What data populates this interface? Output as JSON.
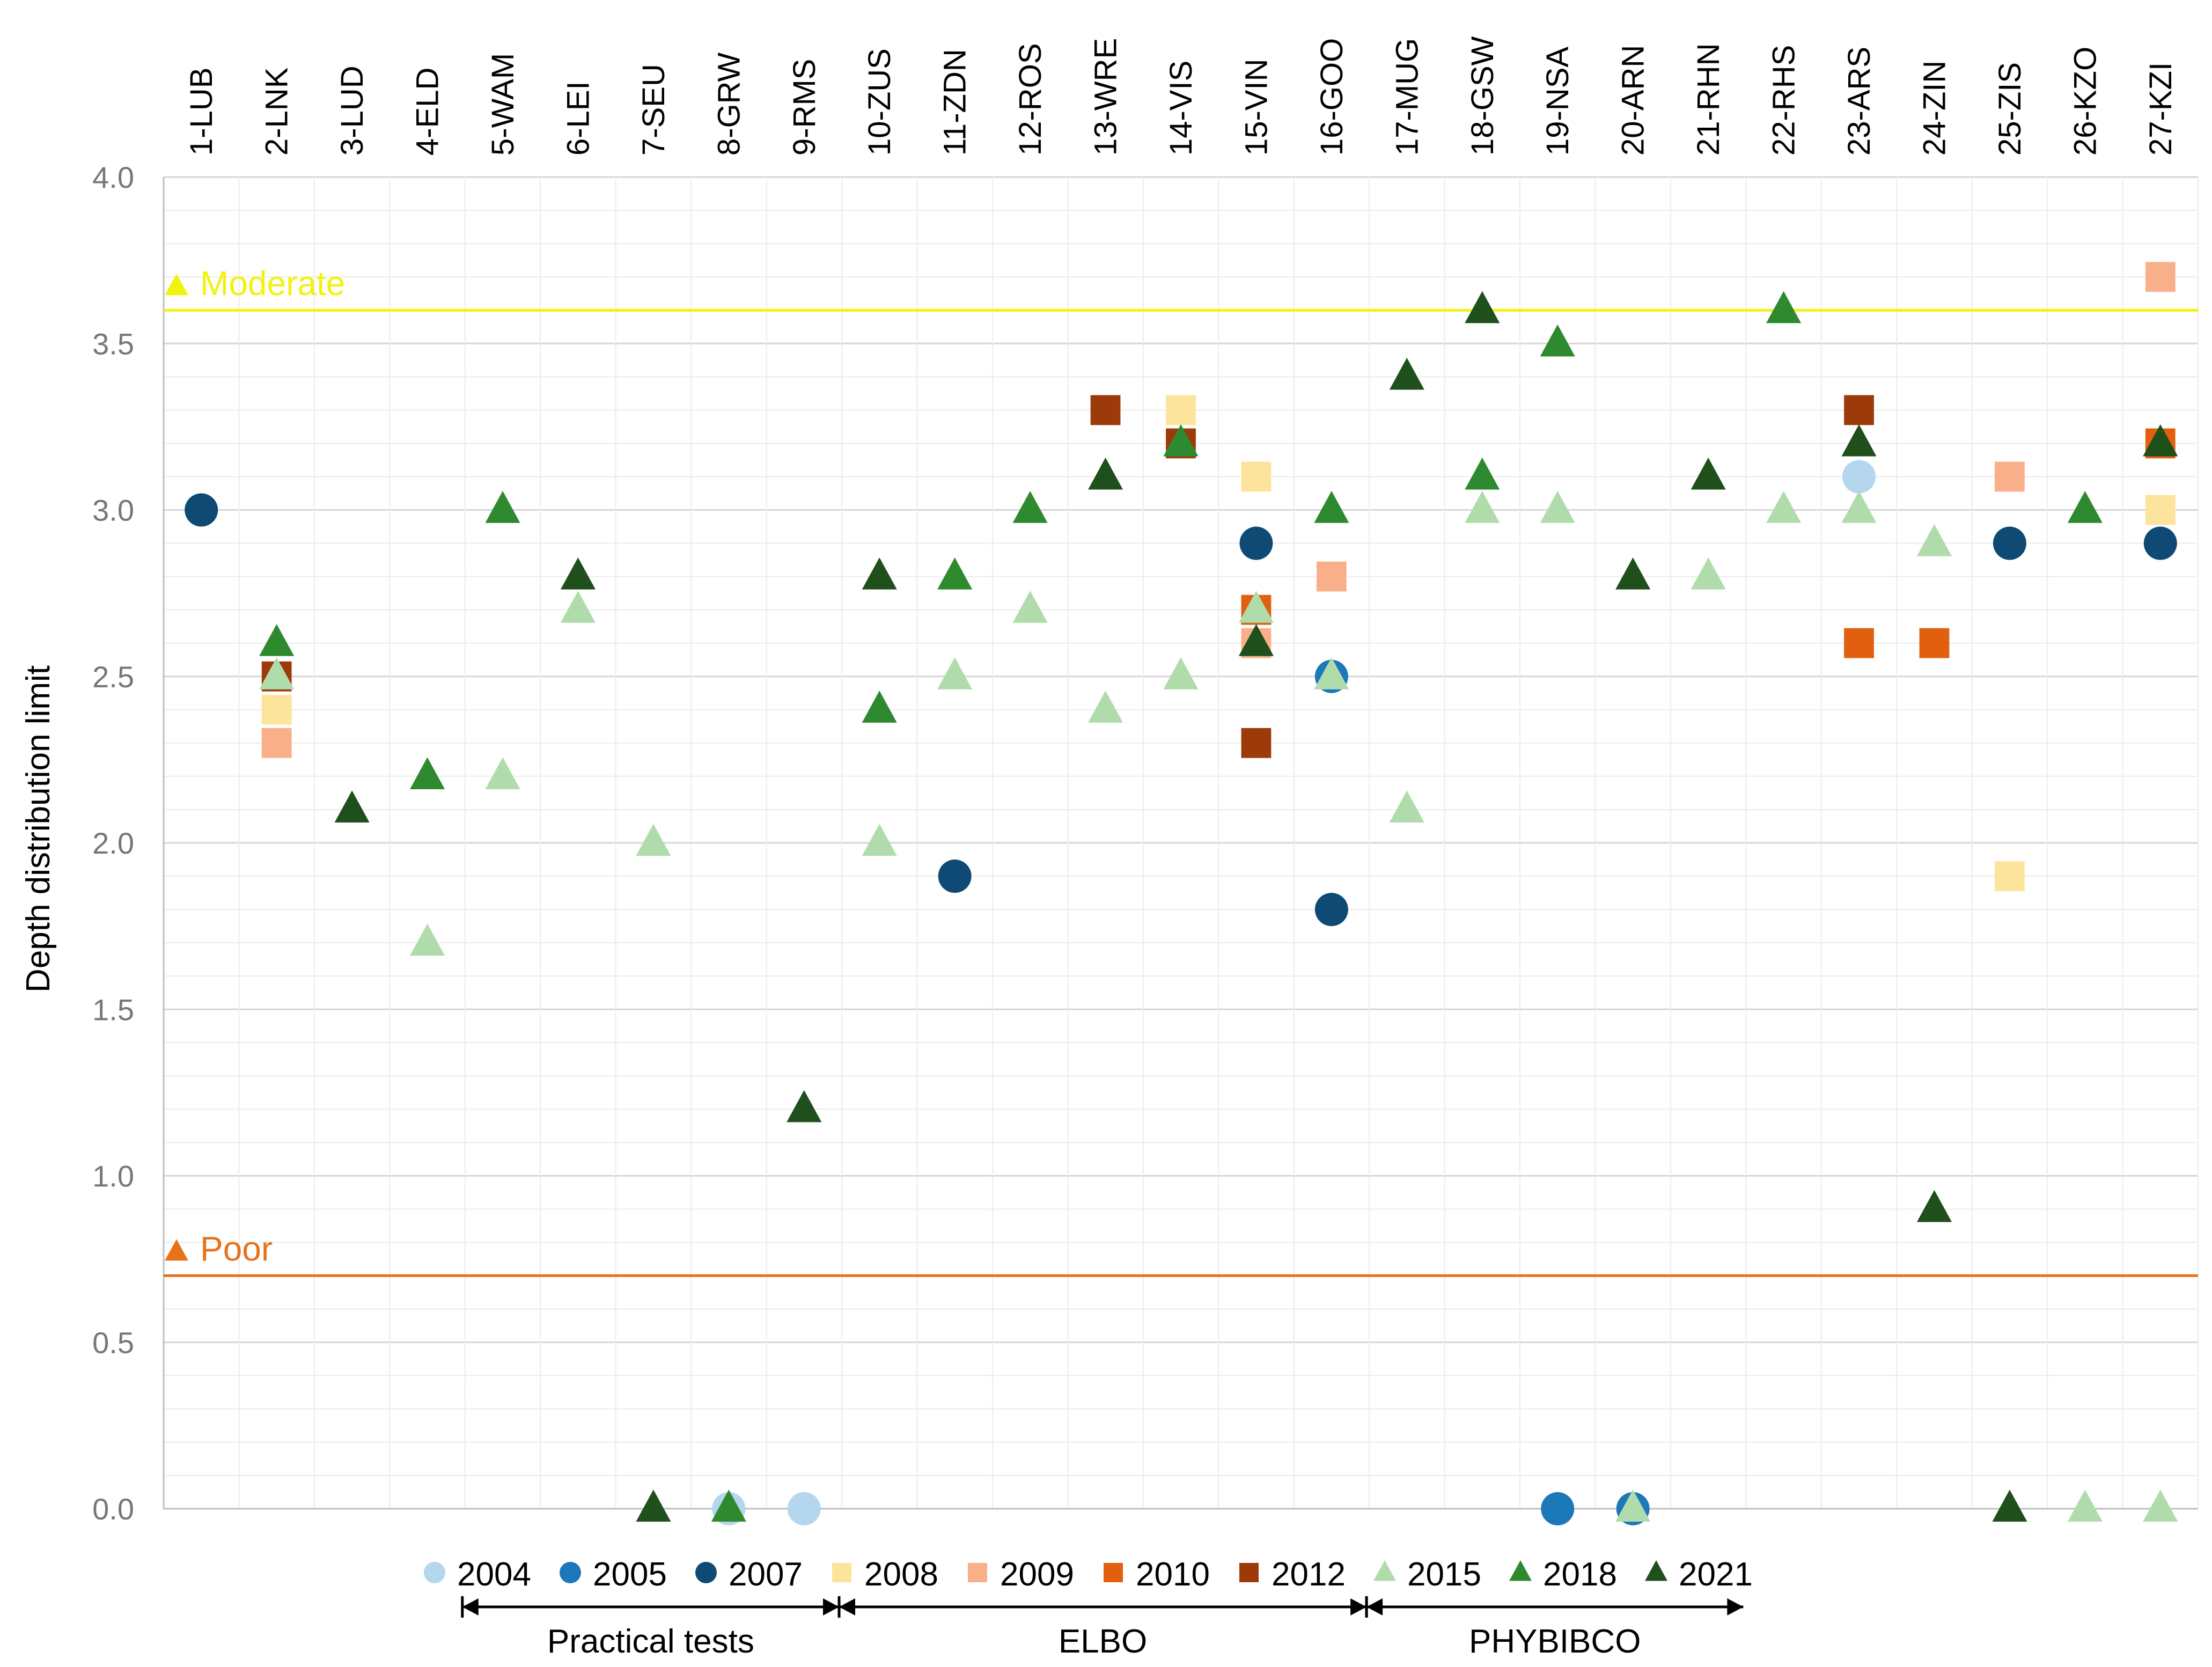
{
  "chart_data": {
    "type": "scatter",
    "ylabel": "Depth distribution limit",
    "ylim": [
      0,
      4
    ],
    "yticks": [
      "0.0",
      "0.5",
      "1.0",
      "1.5",
      "2.0",
      "2.5",
      "3.0",
      "3.5",
      "4.0"
    ],
    "categories": [
      "1-LUB",
      "2-LNK",
      "3-LUD",
      "4-ELD",
      "5-WAM",
      "6-LEI",
      "7-SEU",
      "8-GRW",
      "9-RMS",
      "10-ZUS",
      "11-ZDN",
      "12-ROS",
      "13-WRE",
      "14-VIS",
      "15-VIN",
      "16-GOO",
      "17-MUG",
      "18-GSW",
      "19-NSA",
      "20-ARN",
      "21-RHN",
      "22-RHS",
      "23-ARS",
      "24-ZIN",
      "25-ZIS",
      "26-KZO",
      "27-KZI"
    ],
    "reference_lines": [
      {
        "label": "Moderate",
        "value": 3.6,
        "color": "#f2f20f"
      },
      {
        "label": "Poor",
        "value": 0.7,
        "color": "#e8721c"
      }
    ],
    "series": [
      {
        "name": "2004",
        "marker": "circle",
        "color": "#b4d6ee",
        "points": [
          [
            "8-GRW",
            0.0
          ],
          [
            "9-RMS",
            0.0
          ],
          [
            "23-ARS",
            3.1
          ]
        ]
      },
      {
        "name": "2005",
        "marker": "circle",
        "color": "#1c78b8",
        "points": [
          [
            "16-GOO",
            2.5
          ],
          [
            "19-NSA",
            0.0
          ],
          [
            "20-ARN",
            0.0
          ]
        ]
      },
      {
        "name": "2007",
        "marker": "circle",
        "color": "#0e4a73",
        "points": [
          [
            "1-LUB",
            3.0
          ],
          [
            "11-ZDN",
            1.9
          ],
          [
            "15-VIN",
            2.9
          ],
          [
            "16-GOO",
            1.8
          ],
          [
            "25-ZIS",
            2.9
          ],
          [
            "27-KZI",
            2.9
          ]
        ]
      },
      {
        "name": "2008",
        "marker": "square",
        "color": "#fde49c",
        "points": [
          [
            "2-LNK",
            2.4
          ],
          [
            "14-VIS",
            3.3
          ],
          [
            "15-VIN",
            3.1
          ],
          [
            "25-ZIS",
            1.9
          ],
          [
            "27-KZI",
            3.0
          ]
        ]
      },
      {
        "name": "2009",
        "marker": "square",
        "color": "#f9b08a",
        "points": [
          [
            "2-LNK",
            2.3
          ],
          [
            "15-VIN",
            2.6
          ],
          [
            "16-GOO",
            2.8
          ],
          [
            "25-ZIS",
            3.1
          ],
          [
            "27-KZI",
            3.7
          ]
        ]
      },
      {
        "name": "2010",
        "marker": "square",
        "color": "#e1600f",
        "points": [
          [
            "15-VIN",
            2.7
          ],
          [
            "23-ARS",
            2.6
          ],
          [
            "24-ZIN",
            2.6
          ],
          [
            "27-KZI",
            3.2
          ]
        ]
      },
      {
        "name": "2012",
        "marker": "square",
        "color": "#9c3a0a",
        "points": [
          [
            "2-LNK",
            2.5
          ],
          [
            "13-WRE",
            3.3
          ],
          [
            "14-VIS",
            3.2
          ],
          [
            "15-VIN",
            2.3
          ],
          [
            "23-ARS",
            3.3
          ]
        ]
      },
      {
        "name": "2015",
        "marker": "triangle",
        "color": "#b0dcac",
        "points": [
          [
            "2-LNK",
            2.5
          ],
          [
            "4-ELD",
            1.7
          ],
          [
            "5-WAM",
            2.2
          ],
          [
            "6-LEI",
            2.7
          ],
          [
            "7-SEU",
            2.0
          ],
          [
            "10-ZUS",
            2.0
          ],
          [
            "11-ZDN",
            2.5
          ],
          [
            "12-ROS",
            2.7
          ],
          [
            "13-WRE",
            2.4
          ],
          [
            "14-VIS",
            2.5
          ],
          [
            "15-VIN",
            2.7
          ],
          [
            "16-GOO",
            2.5
          ],
          [
            "17-MUG",
            2.1
          ],
          [
            "18-GSW",
            3.0
          ],
          [
            "19-NSA",
            3.0
          ],
          [
            "20-ARN",
            0.0
          ],
          [
            "21-RHN",
            2.8
          ],
          [
            "22-RHS",
            3.0
          ],
          [
            "23-ARS",
            3.0
          ],
          [
            "24-ZIN",
            2.9
          ],
          [
            "26-KZO",
            0.0
          ],
          [
            "27-KZI",
            0.0
          ]
        ]
      },
      {
        "name": "2018",
        "marker": "triangle",
        "color": "#2e8a2e",
        "points": [
          [
            "2-LNK",
            2.6
          ],
          [
            "4-ELD",
            2.2
          ],
          [
            "5-WAM",
            3.0
          ],
          [
            "8-GRW",
            0.0
          ],
          [
            "10-ZUS",
            2.4
          ],
          [
            "11-ZDN",
            2.8
          ],
          [
            "12-ROS",
            3.0
          ],
          [
            "14-VIS",
            3.2
          ],
          [
            "16-GOO",
            3.0
          ],
          [
            "18-GSW",
            3.1
          ],
          [
            "19-NSA",
            3.5
          ],
          [
            "22-RHS",
            3.6
          ],
          [
            "26-KZO",
            3.0
          ]
        ]
      },
      {
        "name": "2021",
        "marker": "triangle",
        "color": "#1f4f1a",
        "points": [
          [
            "3-LUD",
            2.1
          ],
          [
            "6-LEI",
            2.8
          ],
          [
            "7-SEU",
            0.0
          ],
          [
            "9-RMS",
            1.2
          ],
          [
            "10-ZUS",
            2.8
          ],
          [
            "13-WRE",
            3.1
          ],
          [
            "15-VIN",
            2.6
          ],
          [
            "17-MUG",
            3.4
          ],
          [
            "18-GSW",
            3.6
          ],
          [
            "20-ARN",
            2.8
          ],
          [
            "21-RHN",
            3.1
          ],
          [
            "23-ARS",
            3.2
          ],
          [
            "24-ZIN",
            0.9
          ],
          [
            "25-ZIS",
            0.0
          ],
          [
            "27-KZI",
            3.2
          ]
        ]
      }
    ],
    "phases": [
      {
        "label": "Practical tests",
        "from": "4-ELD",
        "to": "9-RMS",
        "arrow_end": "bar"
      },
      {
        "label": "ELBO",
        "from": "9-RMS",
        "to": "16-GOO",
        "arrow_end": "bar"
      },
      {
        "label": "PHYBIBCO",
        "from": "16-GOO",
        "to": "21-RHN",
        "arrow_end": "arrow"
      }
    ],
    "legend_position": "bottom"
  }
}
